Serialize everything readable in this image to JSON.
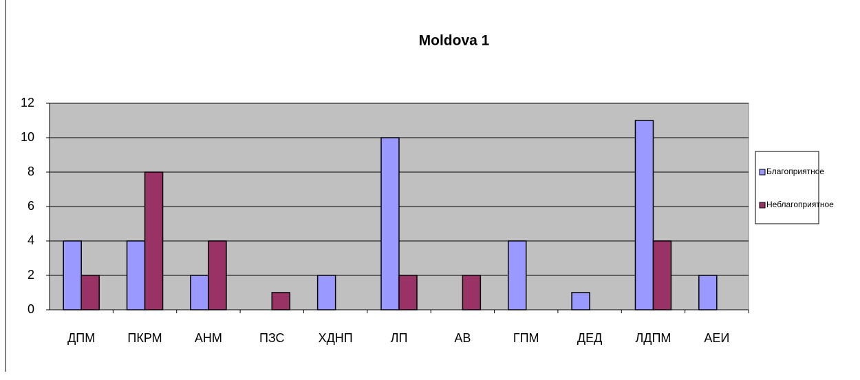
{
  "chart_data": {
    "type": "bar",
    "title": "Moldova 1",
    "categories": [
      "ДПМ",
      "ПКРМ",
      "АНМ",
      "ПЗС",
      "ХДНП",
      "ЛП",
      "АВ",
      "ГПМ",
      "ДЕД",
      "ЛДПМ",
      "АЕИ"
    ],
    "series": [
      {
        "name": "Благоприятное",
        "color": "#9999ff",
        "values": [
          4,
          4,
          2,
          0,
          2,
          10,
          0,
          4,
          1,
          11,
          2
        ]
      },
      {
        "name": "Неблагоприятное",
        "color": "#993366",
        "values": [
          2,
          8,
          4,
          1,
          0,
          2,
          2,
          0,
          0,
          4,
          0
        ]
      }
    ],
    "ylim": [
      0,
      12
    ],
    "yticks": [
      0,
      2,
      4,
      6,
      8,
      10,
      12
    ],
    "grid": true,
    "legend": "right"
  }
}
